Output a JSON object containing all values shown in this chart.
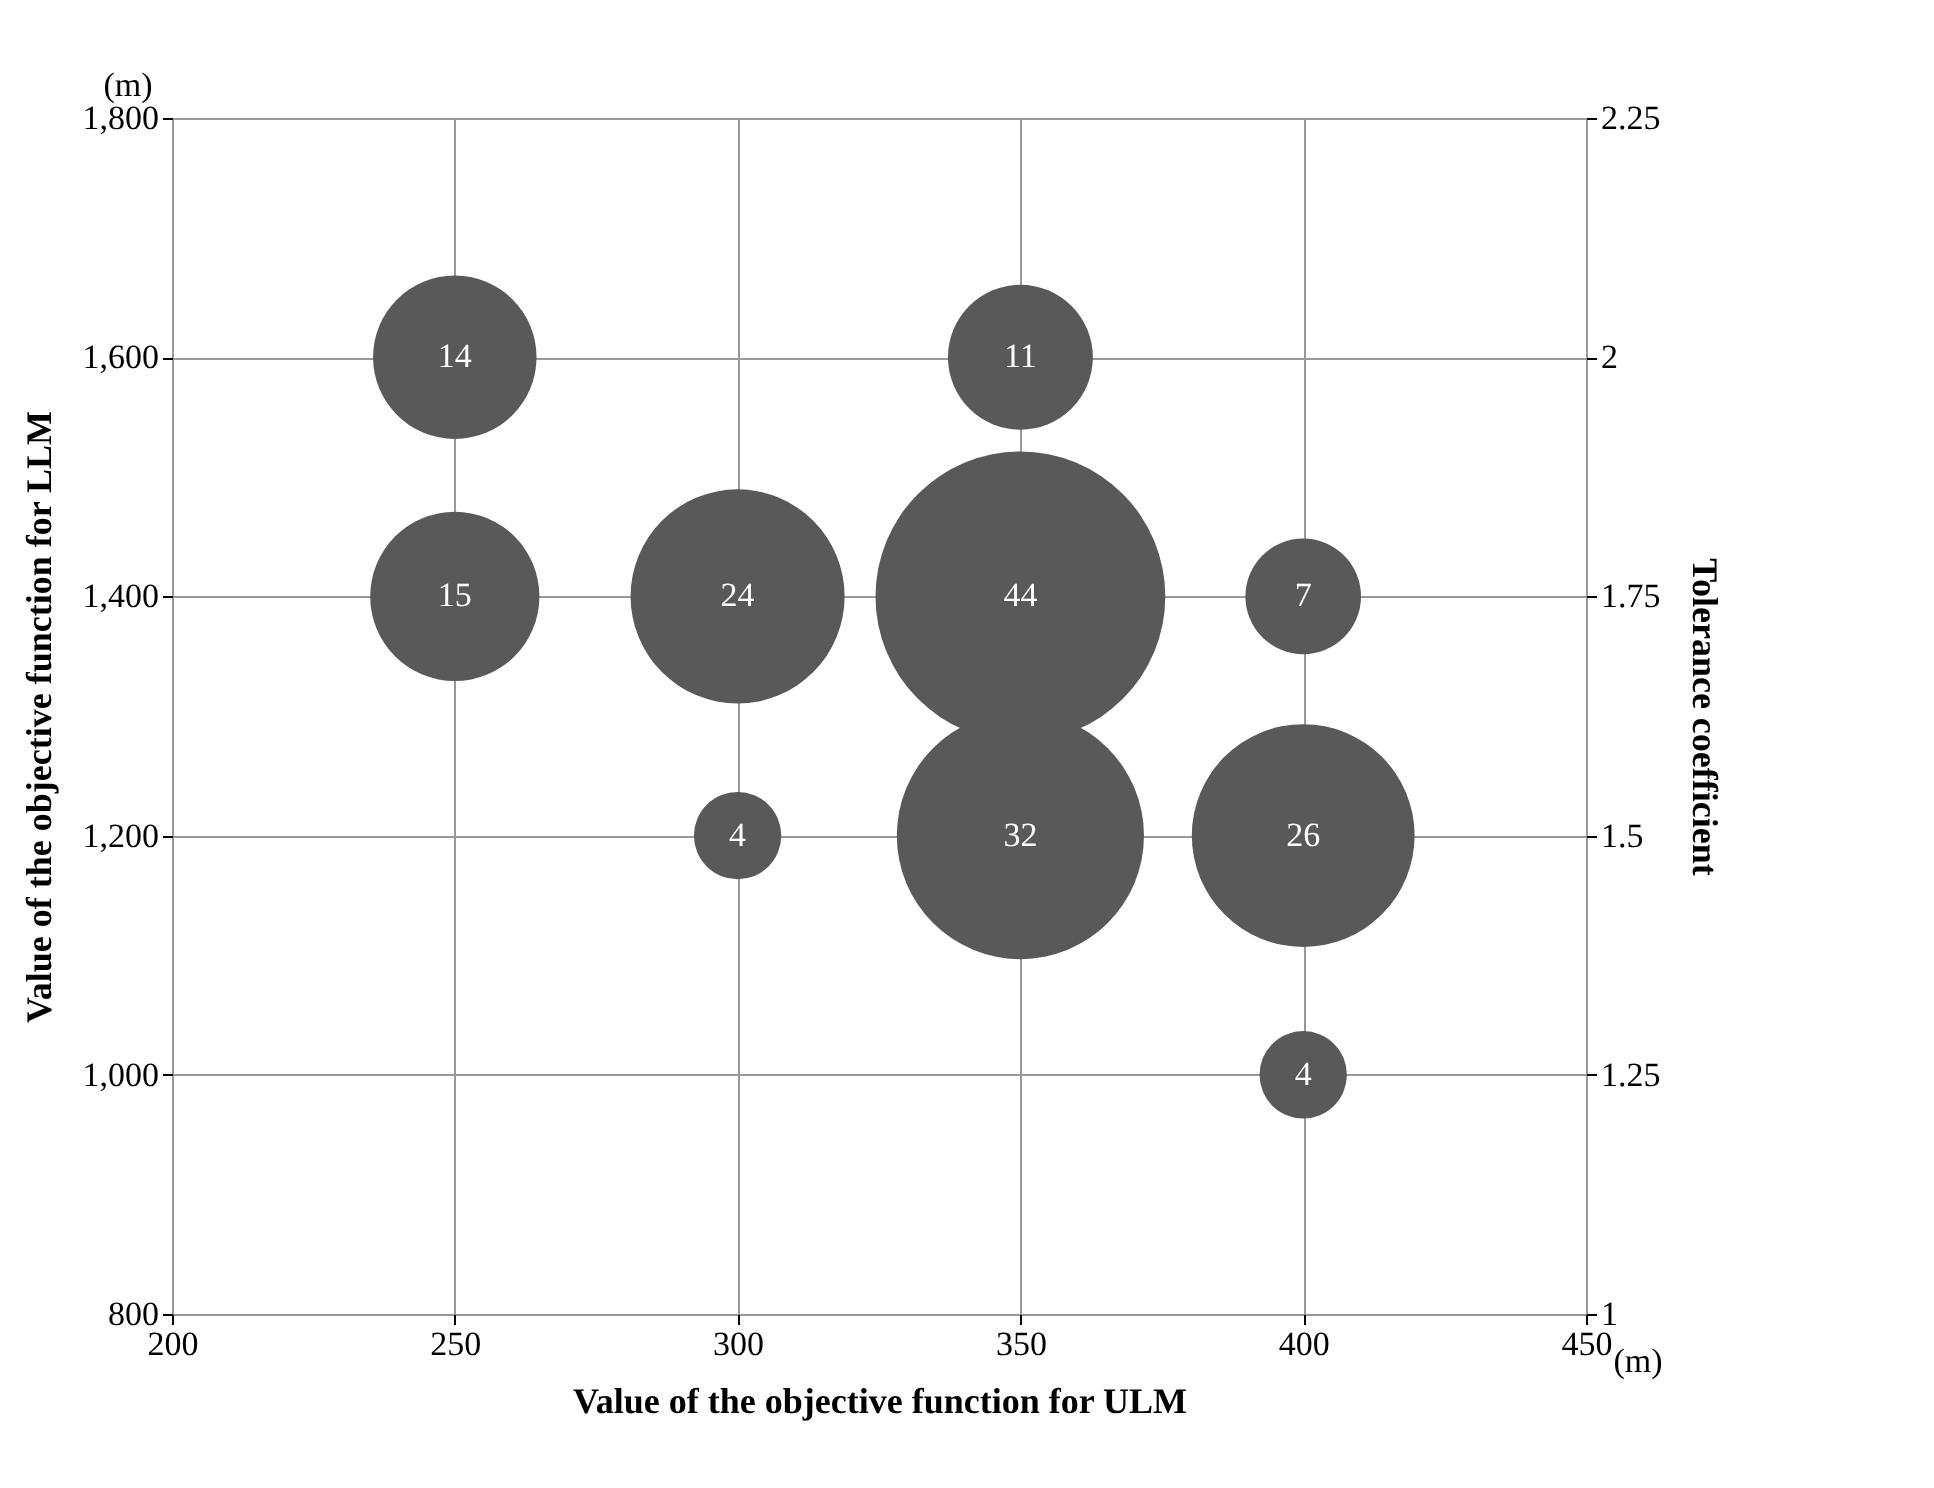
{
  "chart_data": {
    "type": "bubble",
    "xlabel": "Value of the objective function for ULM",
    "ylabel": "Value of the objective function for LLM",
    "y2label": "Tolerance coefficient",
    "x": [
      250,
      250,
      300,
      300,
      350,
      350,
      350,
      400,
      400,
      400
    ],
    "values": [
      1600,
      1400,
      1400,
      1200,
      1600,
      1200,
      1400,
      1400,
      1200,
      1000
    ],
    "sizes": [
      14,
      15,
      24,
      4,
      11,
      32,
      44,
      7,
      26,
      4
    ],
    "value_labels": [
      "14",
      "15",
      "24",
      "4",
      "11",
      "32",
      "44",
      "7",
      "26",
      "4"
    ],
    "color": "#595959",
    "xlim": [
      200,
      450
    ],
    "xticks": [
      200,
      250,
      300,
      350,
      400,
      450
    ],
    "ylim": [
      800,
      1800
    ],
    "yticks": [
      {
        "value": 800,
        "label": "800"
      },
      {
        "value": 1000,
        "label": "1,000"
      },
      {
        "value": 1200,
        "label": "1,200"
      },
      {
        "value": 1400,
        "label": "1,400"
      },
      {
        "value": 1600,
        "label": "1,600"
      },
      {
        "value": 1800,
        "label": "1,800"
      }
    ],
    "y2lim": [
      1,
      2.25
    ],
    "y2ticks": [
      1,
      1.25,
      1.5,
      1.75,
      2,
      2.25
    ],
    "annotations": [
      "(m)",
      "(m)"
    ],
    "grid": true,
    "legend": false,
    "marker": "circle"
  }
}
